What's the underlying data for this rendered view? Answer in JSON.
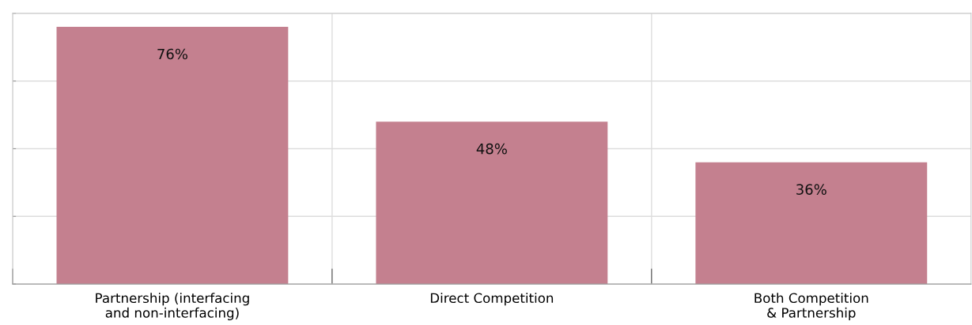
{
  "chart_data": {
    "type": "bar",
    "categories": [
      "Partnership (interfacing\nand non-interfacing)",
      "Direct Competition",
      "Both Competition\n& Partnership"
    ],
    "values": [
      76,
      48,
      36
    ],
    "color": "#c4808f",
    "value_labels": [
      "76%",
      "48%",
      "36%"
    ],
    "ylim": [
      0,
      80
    ],
    "yticks": [
      {
        "value": 0,
        "label": null
      },
      {
        "value": 20,
        "label": null
      },
      {
        "value": 40,
        "label": null
      },
      {
        "value": 60,
        "label": null
      },
      {
        "value": 80,
        "label": null
      }
    ],
    "tick_labels": "x",
    "grid": true,
    "legend": false
  }
}
